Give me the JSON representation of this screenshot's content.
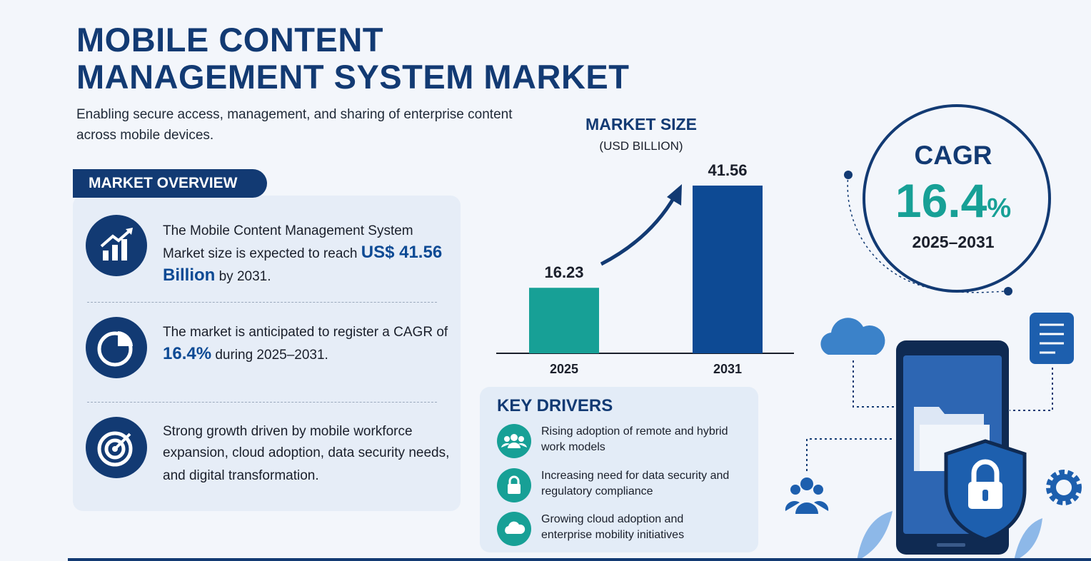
{
  "header": {
    "title_lines": [
      "MOBILE CONTENT",
      "MANAGEMENT SYSTEM MARKET"
    ],
    "subtitle": "Enabling secure access, management, and sharing of enterprise content across mobile devices."
  },
  "overview": {
    "heading": "MARKET OVERVIEW",
    "items": [
      {
        "before": "The Mobile Content Management System Market size is expected to reach ",
        "highlight": "US$ 41.56 Billion",
        "after": " by 2031."
      },
      {
        "before": "The market is anticipated to register a CAGR of ",
        "highlight": "16.4%",
        "after": " during 2025–2031."
      },
      {
        "before": "Strong growth driven by mobile workforce expansion, cloud adoption, data security needs, and digital transformation.",
        "highlight": "",
        "after": ""
      }
    ]
  },
  "chart_data": {
    "type": "bar",
    "title": "MARKET SIZE",
    "subtitle": "(USD BILLION)",
    "categories": [
      "2025",
      "2031"
    ],
    "values": [
      16.23,
      41.56
    ],
    "colors": [
      "#17a096",
      "#0d4a94"
    ]
  },
  "cagr": {
    "label": "CAGR",
    "value": "16.4",
    "unit": "%",
    "period": "2025–2031"
  },
  "drivers": {
    "heading": "KEY DRIVERS",
    "items": [
      "Rising adoption of remote and hybrid work models",
      "Increasing need for data security and regulatory compliance",
      "Growing cloud adoption and enterprise mobility initiatives"
    ]
  }
}
